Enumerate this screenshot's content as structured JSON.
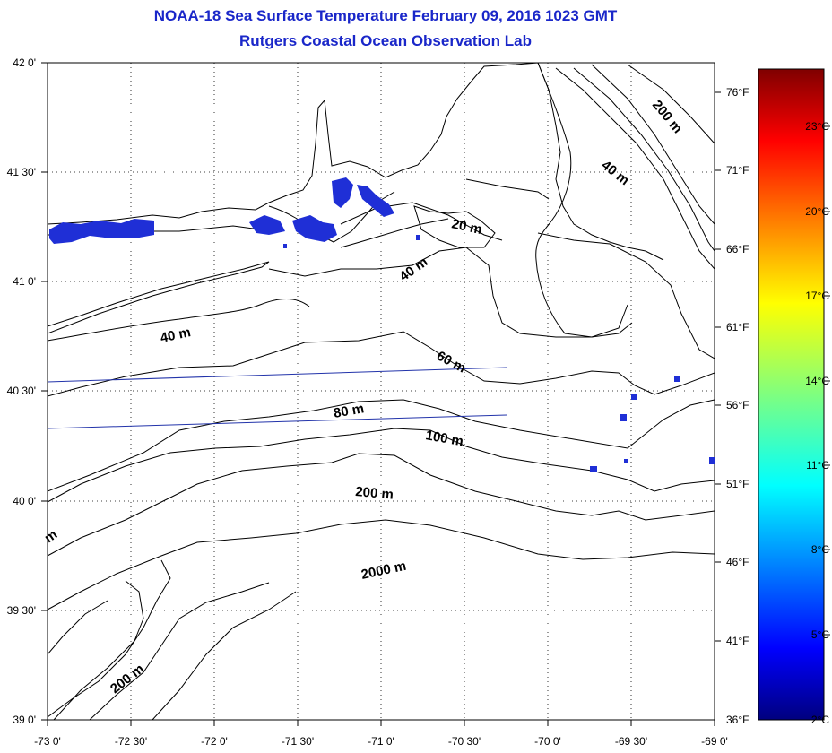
{
  "title": "NOAA-18 Sea Surface Temperature February 09, 2016 1023 GMT",
  "subtitle": "Rutgers Coastal Ocean Observation Lab",
  "lat_labels": [
    "42 0'",
    "41 30'",
    "41 0'",
    "40 30'",
    "40 0'",
    "39 30'",
    "39 0'"
  ],
  "lon_labels": [
    "-73 0'",
    "-72 30'",
    "-72 0'",
    "-71 30'",
    "-71 0'",
    "-70 30'",
    "-70 0'",
    "-69 30'",
    "-69 0'"
  ],
  "fahrenheit_labels": [
    "76°F",
    "71°F",
    "66°F",
    "61°F",
    "56°F",
    "51°F",
    "46°F",
    "41°F",
    "36°F"
  ],
  "celsius_labels": [
    "23°C",
    "20°C",
    "17°C",
    "14°C",
    "11°C",
    "8°C",
    "5°C",
    "2°C"
  ],
  "contour_labels": {
    "c200_ne": "200 m",
    "c40_ne": "40 m",
    "c20": "20 m",
    "c40_sound": "40 m",
    "c40_west": "40 m",
    "c60": "60 m",
    "c80": "80 m",
    "c100": "100 m",
    "c200_mid": "200 m",
    "c2000": "2000 m",
    "c200_sw": "200 m",
    "c_edge": "m"
  },
  "colors": {
    "title": "#1a27c9",
    "sst_patch": "#1f2fd6",
    "track": "#2233aa"
  }
}
